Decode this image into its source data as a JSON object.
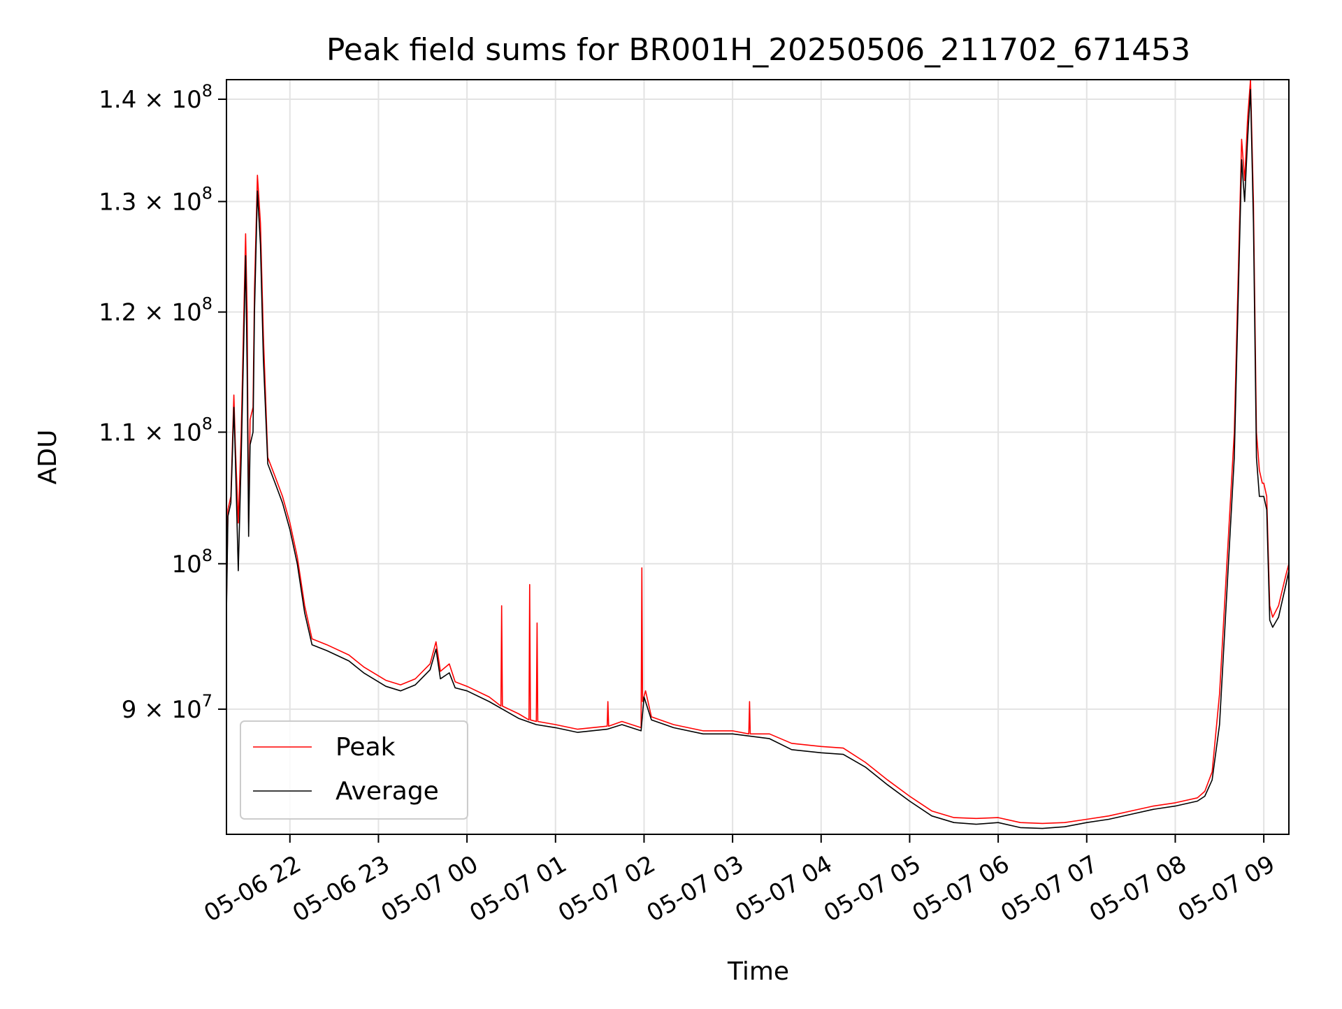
{
  "chart_data": {
    "type": "line",
    "title": "Peak field sums for BR001H_20250506_211702_671453",
    "xlabel": "Time",
    "ylabel": "ADU",
    "x_axis": {
      "kind": "datetime",
      "range": [
        "2025-05-06T21:17:00",
        "2025-05-07T09:17:00"
      ],
      "tick_values": [
        "2025-05-06T22:00:00",
        "2025-05-06T23:00:00",
        "2025-05-07T00:00:00",
        "2025-05-07T01:00:00",
        "2025-05-07T02:00:00",
        "2025-05-07T03:00:00",
        "2025-05-07T04:00:00",
        "2025-05-07T05:00:00",
        "2025-05-07T06:00:00",
        "2025-05-07T07:00:00",
        "2025-05-07T08:00:00",
        "2025-05-07T09:00:00"
      ],
      "tick_labels": [
        "05-06 22",
        "05-06 23",
        "05-07 00",
        "05-07 01",
        "05-07 02",
        "05-07 03",
        "05-07 04",
        "05-07 05",
        "05-07 06",
        "05-07 07",
        "05-07 08",
        "05-07 09"
      ]
    },
    "y_axis": {
      "scale": "log",
      "range": [
        82200000.0,
        142000000.0
      ],
      "ticks": [
        {
          "value": 90000000.0,
          "mantissa": "9",
          "exponent": "7"
        },
        {
          "value": 100000000.0,
          "mantissa": "",
          "exponent": "8"
        },
        {
          "value": 110000000.0,
          "mantissa": "1.1",
          "exponent": "8"
        },
        {
          "value": 120000000.0,
          "mantissa": "1.2",
          "exponent": "8"
        },
        {
          "value": 130000000.0,
          "mantissa": "1.3",
          "exponent": "8"
        },
        {
          "value": 140000000.0,
          "mantissa": "1.4",
          "exponent": "8"
        }
      ]
    },
    "grid": true,
    "legend": {
      "placement": "lower-left"
    },
    "series": [
      {
        "name": "Peak",
        "color": "#ff0000",
        "points": [
          [
            "2025-05-06T21:17:00",
            97000000.0
          ],
          [
            "2025-05-06T21:18:00",
            104000000.0
          ],
          [
            "2025-05-06T21:20:00",
            105000000.0
          ],
          [
            "2025-05-06T21:22:00",
            113000000.0
          ],
          [
            "2025-05-06T21:23:00",
            109000000.0
          ],
          [
            "2025-05-06T21:25:00",
            103000000.0
          ],
          [
            "2025-05-06T21:27:00",
            110000000.0
          ],
          [
            "2025-05-06T21:30:00",
            127000000.0
          ],
          [
            "2025-05-06T21:31:00",
            120000000.0
          ],
          [
            "2025-05-06T21:32:00",
            103000000.0
          ],
          [
            "2025-05-06T21:33:00",
            111000000.0
          ],
          [
            "2025-05-06T21:35:00",
            112000000.0
          ],
          [
            "2025-05-06T21:36:00",
            122000000.0
          ],
          [
            "2025-05-06T21:38:00",
            132500000.0
          ],
          [
            "2025-05-06T21:40:00",
            128000000.0
          ],
          [
            "2025-05-06T21:42:00",
            118000000.0
          ],
          [
            "2025-05-06T21:45:00",
            108000000.0
          ],
          [
            "2025-05-06T21:50:00",
            106500000.0
          ],
          [
            "2025-05-06T21:55:00",
            105000000.0
          ],
          [
            "2025-05-06T22:00:00",
            103000000.0
          ],
          [
            "2025-05-06T22:05:00",
            100500000.0
          ],
          [
            "2025-05-06T22:10:00",
            97000000.0
          ],
          [
            "2025-05-06T22:15:00",
            94700000.0
          ],
          [
            "2025-05-06T22:25:00",
            94300000.0
          ],
          [
            "2025-05-06T22:40:00",
            93600000.0
          ],
          [
            "2025-05-06T22:50:00",
            92800000.0
          ],
          [
            "2025-05-06T23:05:00",
            91900000.0
          ],
          [
            "2025-05-06T23:15:00",
            91600000.0
          ],
          [
            "2025-05-06T23:25:00",
            92000000.0
          ],
          [
            "2025-05-06T23:35:00",
            93000000.0
          ],
          [
            "2025-05-06T23:39:00",
            94500000.0
          ],
          [
            "2025-05-06T23:42:00",
            92500000.0
          ],
          [
            "2025-05-06T23:48:00",
            93000000.0
          ],
          [
            "2025-05-06T23:52:00",
            91800000.0
          ],
          [
            "2025-05-07T00:00:00",
            91500000.0
          ],
          [
            "2025-05-07T00:15:00",
            90800000.0
          ],
          [
            "2025-05-07T00:23:00",
            90200000.0
          ],
          [
            "2025-05-07T00:23:30",
            97000000.0
          ],
          [
            "2025-05-07T00:24:00",
            90200000.0
          ],
          [
            "2025-05-07T00:35:00",
            89700000.0
          ],
          [
            "2025-05-07T00:42:00",
            89300000.0
          ],
          [
            "2025-05-07T00:42:30",
            98500000.0
          ],
          [
            "2025-05-07T00:43:00",
            89300000.0
          ],
          [
            "2025-05-07T00:47:00",
            89200000.0
          ],
          [
            "2025-05-07T00:47:30",
            95800000.0
          ],
          [
            "2025-05-07T00:48:00",
            89200000.0
          ],
          [
            "2025-05-07T01:00:00",
            89000000.0
          ],
          [
            "2025-05-07T01:15:00",
            88700000.0
          ],
          [
            "2025-05-07T01:35:00",
            88900000.0
          ],
          [
            "2025-05-07T01:35:30",
            90500000.0
          ],
          [
            "2025-05-07T01:36:00",
            88900000.0
          ],
          [
            "2025-05-07T01:45:00",
            89200000.0
          ],
          [
            "2025-05-07T01:58:00",
            88800000.0
          ],
          [
            "2025-05-07T01:58:30",
            99700000.0
          ],
          [
            "2025-05-07T01:59:00",
            90500000.0
          ],
          [
            "2025-05-07T02:01:00",
            91200000.0
          ],
          [
            "2025-05-07T02:05:00",
            89500000.0
          ],
          [
            "2025-05-07T02:20:00",
            89000000.0
          ],
          [
            "2025-05-07T02:40:00",
            88600000.0
          ],
          [
            "2025-05-07T03:00:00",
            88600000.0
          ],
          [
            "2025-05-07T03:11:00",
            88400000.0
          ],
          [
            "2025-05-07T03:11:30",
            90500000.0
          ],
          [
            "2025-05-07T03:12:00",
            88400000.0
          ],
          [
            "2025-05-07T03:25:00",
            88400000.0
          ],
          [
            "2025-05-07T03:40:00",
            87800000.0
          ],
          [
            "2025-05-07T04:00:00",
            87600000.0
          ],
          [
            "2025-05-07T04:15:00",
            87500000.0
          ],
          [
            "2025-05-07T04:30:00",
            86600000.0
          ],
          [
            "2025-05-07T04:45:00",
            85500000.0
          ],
          [
            "2025-05-07T05:00:00",
            84500000.0
          ],
          [
            "2025-05-07T05:15:00",
            83600000.0
          ],
          [
            "2025-05-07T05:30:00",
            83200000.0
          ],
          [
            "2025-05-07T05:45:00",
            83150000.0
          ],
          [
            "2025-05-07T06:00:00",
            83200000.0
          ],
          [
            "2025-05-07T06:15:00",
            82900000.0
          ],
          [
            "2025-05-07T06:30:00",
            82850000.0
          ],
          [
            "2025-05-07T06:45:00",
            82900000.0
          ],
          [
            "2025-05-07T07:00:00",
            83100000.0
          ],
          [
            "2025-05-07T07:15:00",
            83300000.0
          ],
          [
            "2025-05-07T07:30:00",
            83600000.0
          ],
          [
            "2025-05-07T07:45:00",
            83900000.0
          ],
          [
            "2025-05-07T08:00:00",
            84100000.0
          ],
          [
            "2025-05-07T08:15:00",
            84400000.0
          ],
          [
            "2025-05-07T08:20:00",
            84800000.0
          ],
          [
            "2025-05-07T08:25:00",
            86000000.0
          ],
          [
            "2025-05-07T08:30:00",
            91000000.0
          ],
          [
            "2025-05-07T08:40:00",
            110000000.0
          ],
          [
            "2025-05-07T08:45:00",
            136000000.0
          ],
          [
            "2025-05-07T08:47:00",
            132000000.0
          ],
          [
            "2025-05-07T08:49:00",
            138000000.0
          ],
          [
            "2025-05-07T08:51:00",
            142000000.0
          ],
          [
            "2025-05-07T08:53:00",
            130000000.0
          ],
          [
            "2025-05-07T08:55:00",
            110000000.0
          ],
          [
            "2025-05-07T08:57:00",
            107000000.0
          ],
          [
            "2025-05-07T08:59:00",
            106000000.0
          ],
          [
            "2025-05-07T09:00:00",
            106000000.0
          ],
          [
            "2025-05-07T09:02:00",
            105000000.0
          ],
          [
            "2025-05-07T09:04:00",
            97000000.0
          ],
          [
            "2025-05-07T09:06:00",
            96200000.0
          ],
          [
            "2025-05-07T09:10:00",
            97000000.0
          ],
          [
            "2025-05-07T09:15:00",
            99200000.0
          ],
          [
            "2025-05-07T09:17:00",
            100000000.0
          ]
        ]
      },
      {
        "name": "Average",
        "color": "#000000",
        "points": [
          [
            "2025-05-06T21:17:00",
            96500000.0
          ],
          [
            "2025-05-06T21:18:00",
            103500000.0
          ],
          [
            "2025-05-06T21:20:00",
            104500000.0
          ],
          [
            "2025-05-06T21:22:00",
            112000000.0
          ],
          [
            "2025-05-06T21:23:00",
            108000000.0
          ],
          [
            "2025-05-06T21:25:00",
            99500000.0
          ],
          [
            "2025-05-06T21:27:00",
            108000000.0
          ],
          [
            "2025-05-06T21:30:00",
            125000000.0
          ],
          [
            "2025-05-06T21:31:00",
            115000000.0
          ],
          [
            "2025-05-06T21:32:00",
            102000000.0
          ],
          [
            "2025-05-06T21:33:00",
            109000000.0
          ],
          [
            "2025-05-06T21:35:00",
            110000000.0
          ],
          [
            "2025-05-06T21:36:00",
            120000000.0
          ],
          [
            "2025-05-06T21:38:00",
            131000000.0
          ],
          [
            "2025-05-06T21:40:00",
            126000000.0
          ],
          [
            "2025-05-06T21:42:00",
            116000000.0
          ],
          [
            "2025-05-06T21:45:00",
            107500000.0
          ],
          [
            "2025-05-06T21:50:00",
            106000000.0
          ],
          [
            "2025-05-06T21:55:00",
            104500000.0
          ],
          [
            "2025-05-06T22:00:00",
            102500000.0
          ],
          [
            "2025-05-06T22:05:00",
            100000000.0
          ],
          [
            "2025-05-06T22:10:00",
            96500000.0
          ],
          [
            "2025-05-06T22:15:00",
            94300000.0
          ],
          [
            "2025-05-06T22:25:00",
            93900000.0
          ],
          [
            "2025-05-06T22:40:00",
            93200000.0
          ],
          [
            "2025-05-06T22:50:00",
            92400000.0
          ],
          [
            "2025-05-06T23:05:00",
            91500000.0
          ],
          [
            "2025-05-06T23:15:00",
            91200000.0
          ],
          [
            "2025-05-06T23:25:00",
            91600000.0
          ],
          [
            "2025-05-06T23:35:00",
            92600000.0
          ],
          [
            "2025-05-06T23:39:00",
            94000000.0
          ],
          [
            "2025-05-06T23:42:00",
            92000000.0
          ],
          [
            "2025-05-06T23:48:00",
            92400000.0
          ],
          [
            "2025-05-06T23:52:00",
            91400000.0
          ],
          [
            "2025-05-07T00:00:00",
            91200000.0
          ],
          [
            "2025-05-07T00:15:00",
            90500000.0
          ],
          [
            "2025-05-07T00:35:00",
            89400000.0
          ],
          [
            "2025-05-07T00:47:00",
            89000000.0
          ],
          [
            "2025-05-07T01:00:00",
            88800000.0
          ],
          [
            "2025-05-07T01:15:00",
            88500000.0
          ],
          [
            "2025-05-07T01:35:00",
            88700000.0
          ],
          [
            "2025-05-07T01:45:00",
            89000000.0
          ],
          [
            "2025-05-07T01:58:00",
            88600000.0
          ],
          [
            "2025-05-07T02:00:00",
            90800000.0
          ],
          [
            "2025-05-07T02:05:00",
            89300000.0
          ],
          [
            "2025-05-07T02:20:00",
            88800000.0
          ],
          [
            "2025-05-07T02:40:00",
            88400000.0
          ],
          [
            "2025-05-07T03:00:00",
            88400000.0
          ],
          [
            "2025-05-07T03:25:00",
            88100000.0
          ],
          [
            "2025-05-07T03:40:00",
            87400000.0
          ],
          [
            "2025-05-07T04:00:00",
            87200000.0
          ],
          [
            "2025-05-07T04:15:00",
            87100000.0
          ],
          [
            "2025-05-07T04:30:00",
            86300000.0
          ],
          [
            "2025-05-07T04:45:00",
            85200000.0
          ],
          [
            "2025-05-07T05:00:00",
            84200000.0
          ],
          [
            "2025-05-07T05:15:00",
            83300000.0
          ],
          [
            "2025-05-07T05:30:00",
            82900000.0
          ],
          [
            "2025-05-07T05:45:00",
            82800000.0
          ],
          [
            "2025-05-07T06:00:00",
            82900000.0
          ],
          [
            "2025-05-07T06:15:00",
            82600000.0
          ],
          [
            "2025-05-07T06:30:00",
            82550000.0
          ],
          [
            "2025-05-07T06:45:00",
            82650000.0
          ],
          [
            "2025-05-07T07:00:00",
            82900000.0
          ],
          [
            "2025-05-07T07:15:00",
            83100000.0
          ],
          [
            "2025-05-07T07:30:00",
            83400000.0
          ],
          [
            "2025-05-07T07:45:00",
            83700000.0
          ],
          [
            "2025-05-07T08:00:00",
            83900000.0
          ],
          [
            "2025-05-07T08:15:00",
            84200000.0
          ],
          [
            "2025-05-07T08:20:00",
            84500000.0
          ],
          [
            "2025-05-07T08:25:00",
            85500000.0
          ],
          [
            "2025-05-07T08:30:00",
            89000000.0
          ],
          [
            "2025-05-07T08:40:00",
            108000000.0
          ],
          [
            "2025-05-07T08:45:00",
            134000000.0
          ],
          [
            "2025-05-07T08:47:00",
            130000000.0
          ],
          [
            "2025-05-07T08:49:00",
            136000000.0
          ],
          [
            "2025-05-07T08:51:00",
            141000000.0
          ],
          [
            "2025-05-07T08:53:00",
            128000000.0
          ],
          [
            "2025-05-07T08:55:00",
            108000000.0
          ],
          [
            "2025-05-07T08:57:00",
            105000000.0
          ],
          [
            "2025-05-07T08:59:00",
            105000000.0
          ],
          [
            "2025-05-07T09:00:00",
            105000000.0
          ],
          [
            "2025-05-07T09:02:00",
            104000000.0
          ],
          [
            "2025-05-07T09:04:00",
            96000000.0
          ],
          [
            "2025-05-07T09:06:00",
            95500000.0
          ],
          [
            "2025-05-07T09:10:00",
            96200000.0
          ],
          [
            "2025-05-07T09:15:00",
            98500000.0
          ],
          [
            "2025-05-07T09:17:00",
            99500000.0
          ]
        ]
      }
    ]
  }
}
